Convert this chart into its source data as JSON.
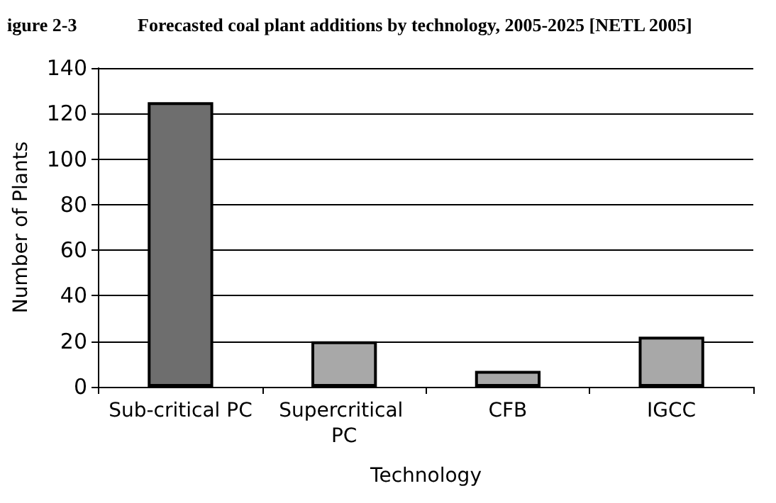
{
  "chart_data": {
    "type": "bar",
    "title": "Forecasted coal plant additions by technology, 2005-2025 [NETL 2005]",
    "annotations": [
      "igure 2-3"
    ],
    "categories": [
      "Sub-critical PC",
      "Supercritical PC",
      "CFB",
      "IGCC"
    ],
    "values": [
      125,
      20,
      7,
      22
    ],
    "colors": [
      "#6e6e6e",
      "#a8a8a8",
      "#a8a8a8",
      "#a8a8a8"
    ],
    "xlabel": "Technology",
    "ylabel": "Number of Plants",
    "ylim": [
      0,
      140
    ],
    "yticks": [
      0,
      20,
      40,
      60,
      80,
      100,
      120,
      140
    ],
    "grid": "y"
  }
}
